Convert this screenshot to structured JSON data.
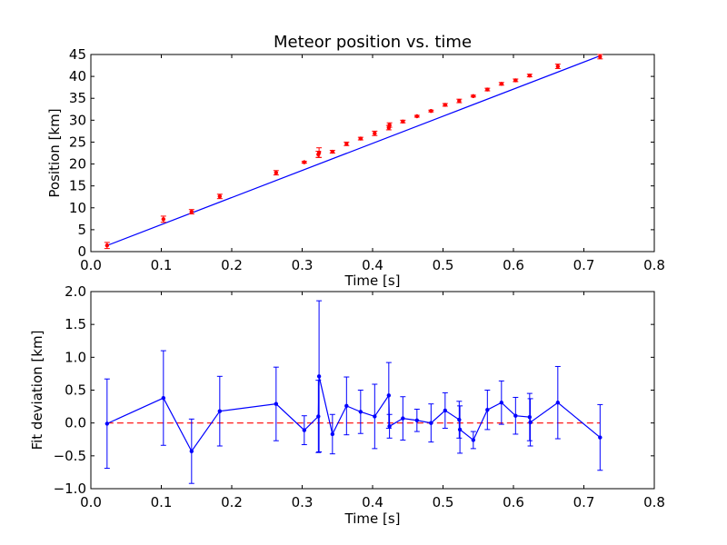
{
  "chart_data": [
    {
      "type": "scatter",
      "title": "Meteor position vs. time",
      "xlabel": "Time [s]",
      "ylabel": "Position [km]",
      "xlim": [
        0.0,
        0.8
      ],
      "ylim": [
        0,
        45
      ],
      "xticks": [
        "0.0",
        "0.1",
        "0.2",
        "0.3",
        "0.4",
        "0.5",
        "0.6",
        "0.7",
        "0.8"
      ],
      "yticks": [
        "0",
        "5",
        "10",
        "15",
        "20",
        "25",
        "30",
        "35",
        "40",
        "45"
      ],
      "grid": false,
      "colors": {
        "points": "#ff0000",
        "fit": "#0000ff"
      },
      "series": [
        {
          "kind": "measurements-with-error-bars",
          "x": [
            0.023,
            0.103,
            0.143,
            0.183,
            0.263,
            0.303,
            0.323,
            0.324,
            0.343,
            0.363,
            0.383,
            0.403,
            0.423,
            0.424,
            0.443,
            0.463,
            0.483,
            0.503,
            0.523,
            0.543,
            0.563,
            0.583,
            0.603,
            0.623,
            0.663,
            0.723
          ],
          "y": [
            1.4,
            7.4,
            9.1,
            12.6,
            18.0,
            20.4,
            22.2,
            22.6,
            22.8,
            24.6,
            25.8,
            27.0,
            28.3,
            28.9,
            29.7,
            30.9,
            32.1,
            33.5,
            34.4,
            35.5,
            37.0,
            38.3,
            39.1,
            40.2,
            42.3,
            44.5
          ],
          "yerr": [
            0.7,
            0.7,
            0.5,
            0.5,
            0.5,
            0.2,
            0.7,
            1.1,
            0.3,
            0.4,
            0.3,
            0.5,
            0.5,
            0.5,
            0.3,
            0.2,
            0.2,
            0.3,
            0.4,
            0.2,
            0.3,
            0.3,
            0.3,
            0.3,
            0.5,
            0.5
          ]
        },
        {
          "kind": "fit-line",
          "x": [
            0.023,
            0.723
          ],
          "y": [
            1.4,
            44.7
          ]
        }
      ]
    },
    {
      "type": "line",
      "xlabel": "Time [s]",
      "ylabel": "Fit deviation [km]",
      "xlim": [
        0.0,
        0.8
      ],
      "ylim": [
        -1.0,
        2.0
      ],
      "xticks": [
        "0.0",
        "0.1",
        "0.2",
        "0.3",
        "0.4",
        "0.5",
        "0.6",
        "0.7",
        "0.8"
      ],
      "yticks": [
        "−1.0",
        "−0.5",
        "0.0",
        "0.5",
        "1.0",
        "1.5",
        "2.0"
      ],
      "grid": false,
      "colors": {
        "line": "#0000ff",
        "zero": "#ff0000"
      },
      "series": [
        {
          "kind": "deviation-with-error-bars",
          "x": [
            0.023,
            0.103,
            0.143,
            0.183,
            0.263,
            0.303,
            0.323,
            0.324,
            0.343,
            0.363,
            0.383,
            0.403,
            0.423,
            0.424,
            0.443,
            0.463,
            0.483,
            0.503,
            0.523,
            0.524,
            0.543,
            0.563,
            0.583,
            0.603,
            0.623,
            0.624,
            0.663,
            0.723
          ],
          "y": [
            -0.01,
            0.38,
            -0.43,
            0.18,
            0.29,
            -0.11,
            0.1,
            0.71,
            -0.17,
            0.26,
            0.17,
            0.1,
            0.42,
            -0.05,
            0.07,
            0.04,
            0.0,
            0.19,
            0.05,
            -0.1,
            -0.26,
            0.2,
            0.31,
            0.11,
            0.09,
            0.01,
            0.31,
            -0.22
          ],
          "yerr": [
            0.68,
            0.72,
            0.49,
            0.53,
            0.56,
            0.22,
            0.55,
            1.15,
            0.3,
            0.44,
            0.33,
            0.49,
            0.5,
            0.18,
            0.33,
            0.17,
            0.29,
            0.27,
            0.28,
            0.36,
            0.13,
            0.3,
            0.33,
            0.28,
            0.36,
            0.36,
            0.55,
            0.5
          ]
        },
        {
          "kind": "zero-line",
          "x": [
            0.023,
            0.723
          ],
          "y": [
            0.0,
            0.0
          ]
        }
      ]
    }
  ]
}
